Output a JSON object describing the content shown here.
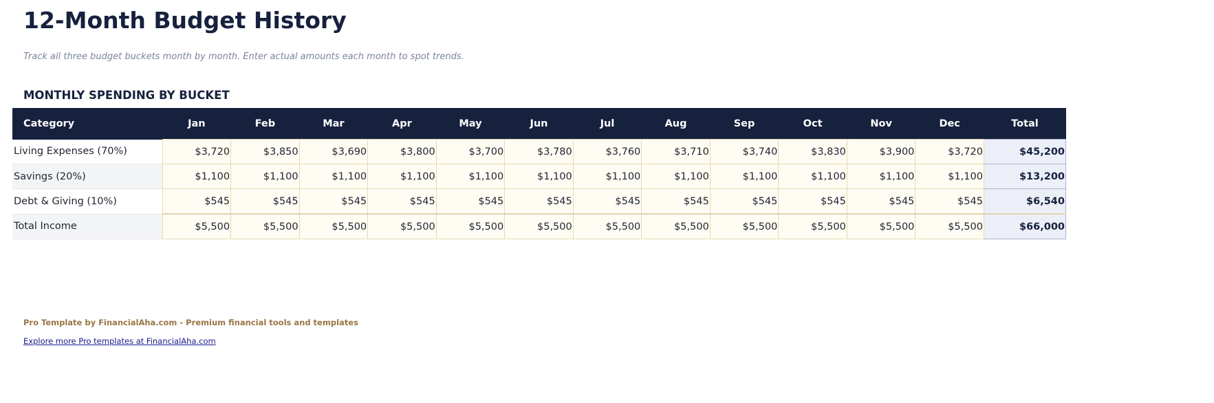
{
  "title": "12-Month Budget History",
  "subtitle": "Track all three budget buckets month by month. Enter actual amounts each month to spot trends.",
  "section_title": "MONTHLY SPENDING BY BUCKET",
  "table": {
    "headers": [
      "Category",
      "Jan",
      "Feb",
      "Mar",
      "Apr",
      "May",
      "Jun",
      "Jul",
      "Aug",
      "Sep",
      "Oct",
      "Nov",
      "Dec",
      "Total"
    ],
    "rows": [
      {
        "category": "Living Expenses (70%)",
        "values": [
          "$3,720",
          "$3,850",
          "$3,690",
          "$3,800",
          "$3,700",
          "$3,780",
          "$3,760",
          "$3,710",
          "$3,740",
          "$3,830",
          "$3,900",
          "$3,720"
        ],
        "total": "$45,200"
      },
      {
        "category": "Savings (20%)",
        "values": [
          "$1,100",
          "$1,100",
          "$1,100",
          "$1,100",
          "$1,100",
          "$1,100",
          "$1,100",
          "$1,100",
          "$1,100",
          "$1,100",
          "$1,100",
          "$1,100"
        ],
        "total": "$13,200"
      },
      {
        "category": "Debt & Giving (10%)",
        "values": [
          "$545",
          "$545",
          "$545",
          "$545",
          "$545",
          "$545",
          "$545",
          "$545",
          "$545",
          "$545",
          "$545",
          "$545"
        ],
        "total": "$6,540"
      },
      {
        "category": "Total Income",
        "values": [
          "$5,500",
          "$5,500",
          "$5,500",
          "$5,500",
          "$5,500",
          "$5,500",
          "$5,500",
          "$5,500",
          "$5,500",
          "$5,500",
          "$5,500",
          "$5,500"
        ],
        "total": "$66,000"
      }
    ]
  },
  "footer": {
    "note": "Pro Template by FinancialAha.com - Premium financial tools and templates",
    "link": "Explore more Pro templates at FinancialAha.com"
  },
  "colors": {
    "header_bg": "#16213e",
    "input_cell": "#fefcf3",
    "total_cell": "#eceff7",
    "footer_note": "#9a7444"
  }
}
